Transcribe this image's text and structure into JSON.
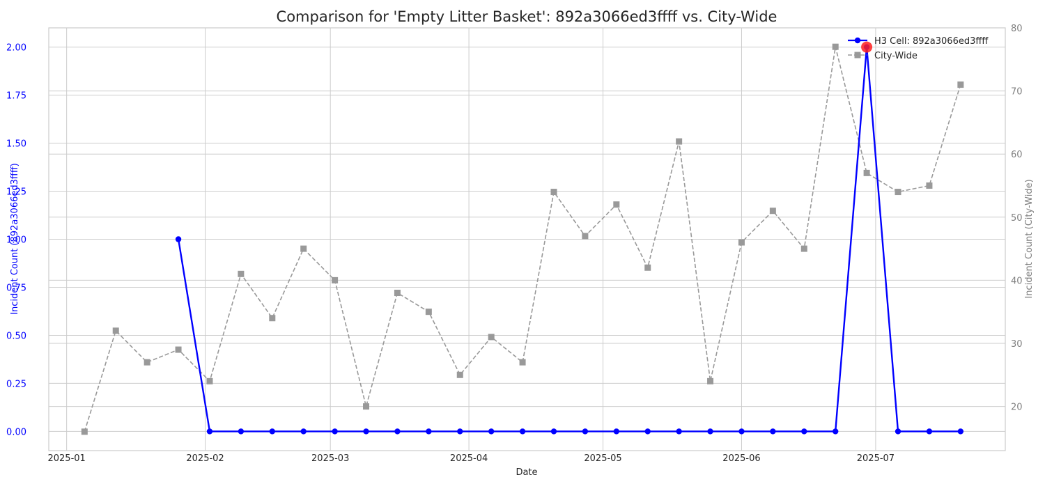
{
  "chart_data": {
    "type": "line",
    "title": "Comparison for 'Empty Litter Basket': 892a3066ed3ffff vs. City-Wide",
    "xlabel": "Date",
    "ylabel_left": "Incident Count (892a3066ed3ffff)",
    "ylabel_right": "Incident Count (City-Wide)",
    "x_range": [
      "2024-12-28",
      "2025-07-30"
    ],
    "ylim_left": [
      -0.1,
      2.1
    ],
    "ylim_right": [
      13,
      80
    ],
    "x_ticks": [
      {
        "date": "2025-01-01",
        "label": "2025-01"
      },
      {
        "date": "2025-02-01",
        "label": "2025-02"
      },
      {
        "date": "2025-03-01",
        "label": "2025-03"
      },
      {
        "date": "2025-04-01",
        "label": "2025-04"
      },
      {
        "date": "2025-05-01",
        "label": "2025-05"
      },
      {
        "date": "2025-06-01",
        "label": "2025-06"
      },
      {
        "date": "2025-07-01",
        "label": "2025-07"
      }
    ],
    "y_ticks_left": [
      {
        "value": 0.0,
        "label": "0.00"
      },
      {
        "value": 0.25,
        "label": "0.25"
      },
      {
        "value": 0.5,
        "label": "0.50"
      },
      {
        "value": 0.75,
        "label": "0.75"
      },
      {
        "value": 1.0,
        "label": "1.00"
      },
      {
        "value": 1.25,
        "label": "1.25"
      },
      {
        "value": 1.5,
        "label": "1.50"
      },
      {
        "value": 1.75,
        "label": "1.75"
      },
      {
        "value": 2.0,
        "label": "2.00"
      }
    ],
    "y_ticks_right": [
      {
        "value": 20,
        "label": "20"
      },
      {
        "value": 30,
        "label": "30"
      },
      {
        "value": 40,
        "label": "40"
      },
      {
        "value": 50,
        "label": "50"
      },
      {
        "value": 60,
        "label": "60"
      },
      {
        "value": 70,
        "label": "70"
      },
      {
        "value": 80,
        "label": "80"
      }
    ],
    "grid": true,
    "legend_position": "top-right",
    "series": [
      {
        "name": "H3 Cell: 892a3066ed3ffff",
        "axis": "left",
        "color": "#0000ff",
        "style": "solid",
        "marker": "circle",
        "x": [
          "2025-01-26",
          "2025-02-02",
          "2025-02-09",
          "2025-02-16",
          "2025-02-23",
          "2025-03-02",
          "2025-03-09",
          "2025-03-16",
          "2025-03-23",
          "2025-03-30",
          "2025-04-06",
          "2025-04-13",
          "2025-04-20",
          "2025-04-27",
          "2025-05-04",
          "2025-05-11",
          "2025-05-18",
          "2025-05-25",
          "2025-06-01",
          "2025-06-08",
          "2025-06-15",
          "2025-06-22",
          "2025-06-29",
          "2025-07-06",
          "2025-07-13",
          "2025-07-20"
        ],
        "values": [
          1,
          0,
          0,
          0,
          0,
          0,
          0,
          0,
          0,
          0,
          0,
          0,
          0,
          0,
          0,
          0,
          0,
          0,
          0,
          0,
          0,
          0,
          2,
          0,
          0,
          0
        ]
      },
      {
        "name": "City-Wide",
        "axis": "right",
        "color": "#999999",
        "style": "dashed",
        "marker": "square",
        "x": [
          "2025-01-05",
          "2025-01-12",
          "2025-01-19",
          "2025-01-26",
          "2025-02-02",
          "2025-02-09",
          "2025-02-16",
          "2025-02-23",
          "2025-03-02",
          "2025-03-09",
          "2025-03-16",
          "2025-03-23",
          "2025-03-30",
          "2025-04-06",
          "2025-04-13",
          "2025-04-20",
          "2025-04-27",
          "2025-05-04",
          "2025-05-11",
          "2025-05-18",
          "2025-05-25",
          "2025-06-01",
          "2025-06-08",
          "2025-06-15",
          "2025-06-22",
          "2025-06-29",
          "2025-07-06",
          "2025-07-13",
          "2025-07-20"
        ],
        "values": [
          16,
          32,
          27,
          29,
          24,
          41,
          34,
          45,
          40,
          20,
          38,
          35,
          25,
          31,
          27,
          54,
          47,
          52,
          42,
          62,
          24,
          46,
          51,
          45,
          77,
          57,
          54,
          55,
          71
        ]
      }
    ],
    "highlight": {
      "series": "H3 Cell: 892a3066ed3ffff",
      "x": "2025-06-29",
      "value": 2,
      "color": "#ff2020"
    }
  }
}
